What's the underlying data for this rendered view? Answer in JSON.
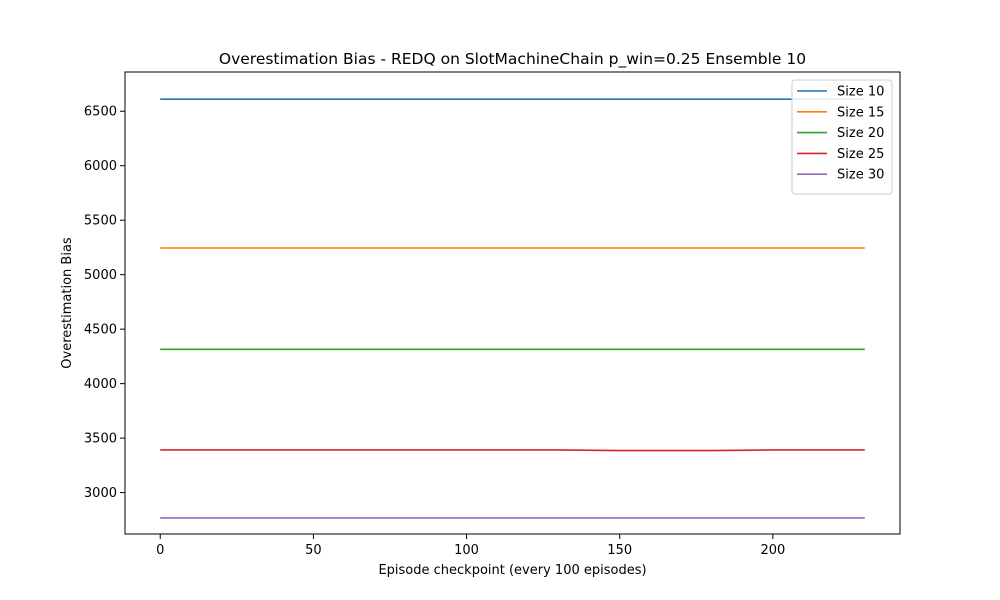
{
  "chart_data": {
    "type": "line",
    "title": "Overestimation Bias - REDQ on SlotMachineChain p_win=0.25 Ensemble 10",
    "xlabel": "Episode checkpoint (every 100 episodes)",
    "ylabel": "Overestimation Bias",
    "xlim": [
      -11.5,
      241.5
    ],
    "ylim": [
      2620,
      6860
    ],
    "xticks": [
      0,
      50,
      100,
      150,
      200
    ],
    "yticks": [
      3000,
      3500,
      4000,
      4500,
      5000,
      5500,
      6000,
      6500
    ],
    "grid": false,
    "legend_position": "top-right",
    "series": [
      {
        "name": "Size 10",
        "color": "#1f77b4",
        "points": [
          [
            0,
            6610
          ],
          [
            230,
            6610
          ]
        ]
      },
      {
        "name": "Size 15",
        "color": "#ff7f0e",
        "points": [
          [
            0,
            5245
          ],
          [
            230,
            5245
          ]
        ]
      },
      {
        "name": "Size 20",
        "color": "#2ca02c",
        "points": [
          [
            0,
            4315
          ],
          [
            230,
            4315
          ]
        ]
      },
      {
        "name": "Size 25",
        "color": "#d62728",
        "points": [
          [
            0,
            3392
          ],
          [
            130,
            3392
          ],
          [
            150,
            3385
          ],
          [
            180,
            3385
          ],
          [
            200,
            3392
          ],
          [
            230,
            3392
          ]
        ]
      },
      {
        "name": "Size 30",
        "color": "#9467bd",
        "points": [
          [
            0,
            2768
          ],
          [
            230,
            2768
          ]
        ]
      }
    ]
  }
}
